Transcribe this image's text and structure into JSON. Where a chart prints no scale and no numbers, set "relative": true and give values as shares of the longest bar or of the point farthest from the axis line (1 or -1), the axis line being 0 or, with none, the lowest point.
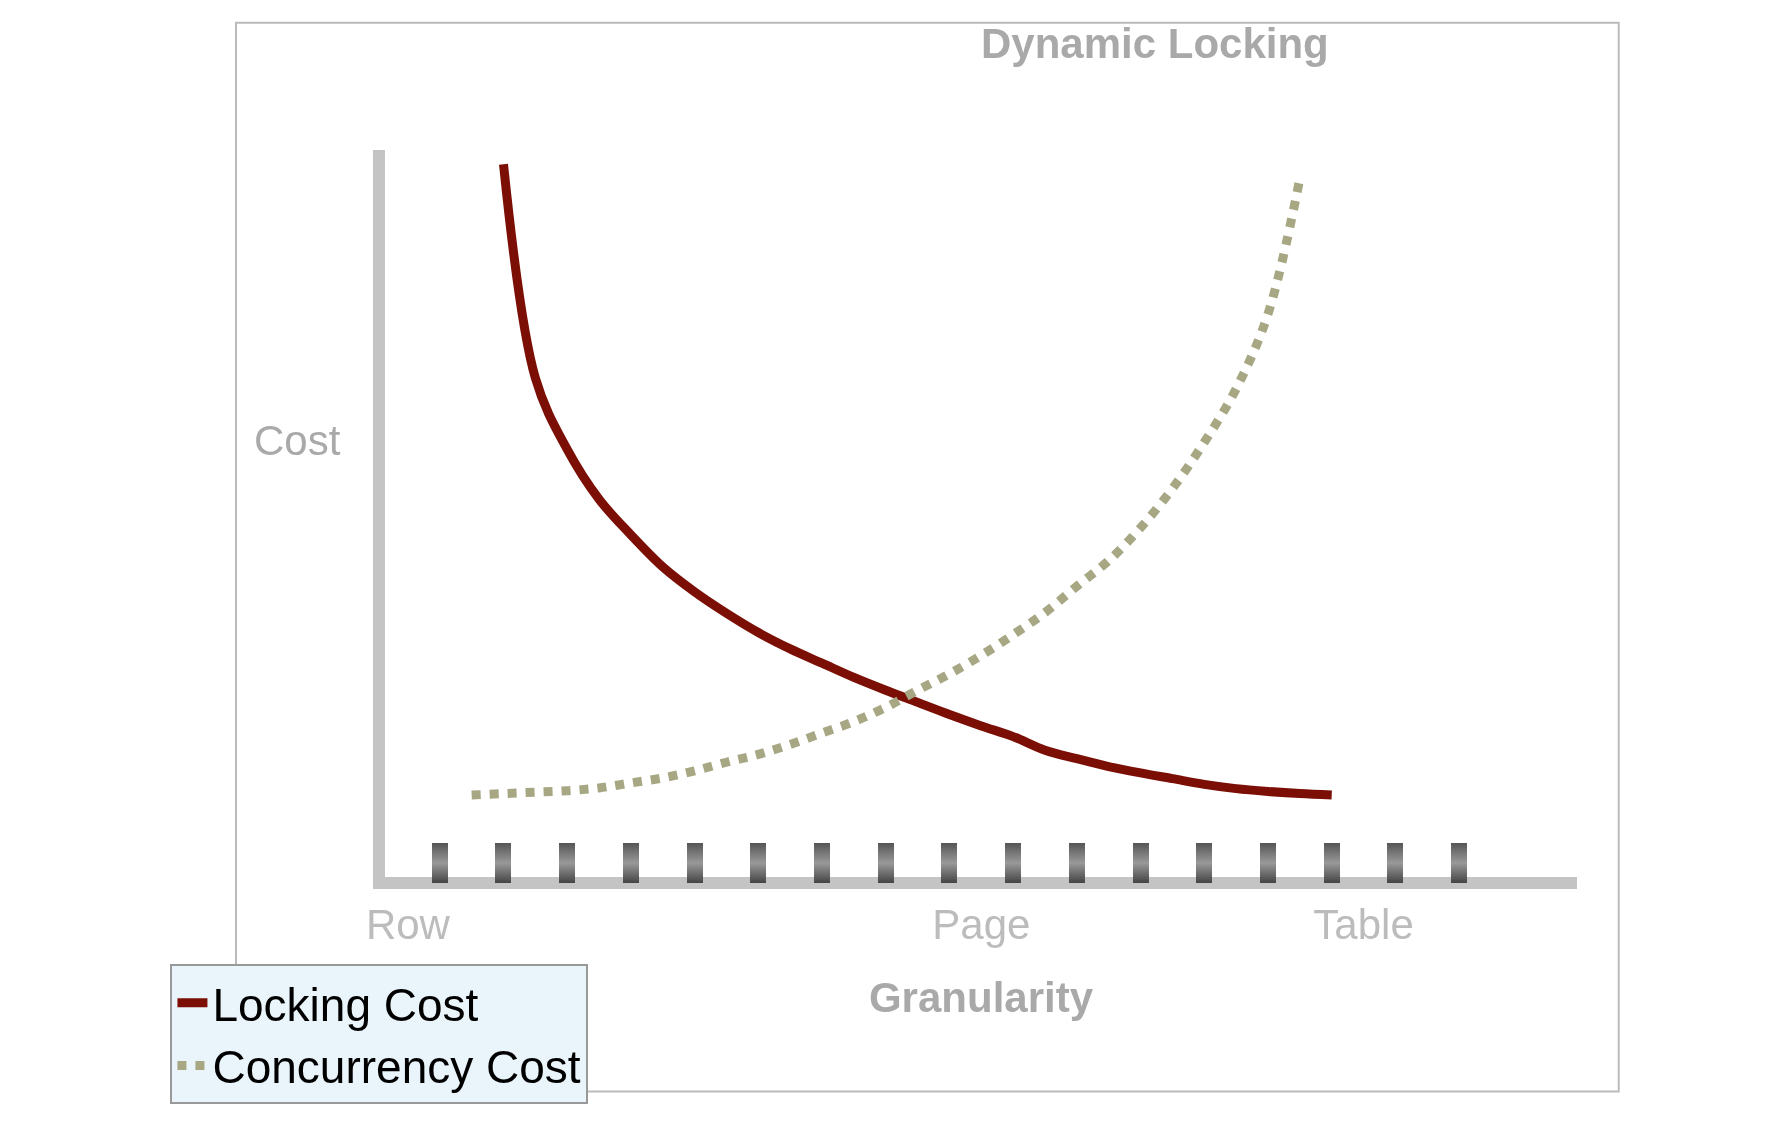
{
  "chart_data": {
    "type": "line",
    "title": "Dynamic Locking",
    "xlabel": "Granularity",
    "ylabel": "Cost",
    "relative": true,
    "categories": [
      null,
      "Row",
      null,
      null,
      null,
      null,
      null,
      null,
      null,
      null,
      null,
      null,
      null,
      null,
      null,
      null,
      null,
      null,
      null,
      "Page",
      null,
      null,
      null,
      null,
      null,
      null,
      null,
      null,
      null,
      null,
      null,
      "Table",
      null,
      null,
      null
    ],
    "series": [
      {
        "name": "Locking Cost",
        "color": "#7b0f06",
        "line_style": "solid",
        "values": [
          null,
          null,
          null,
          null,
          1,
          0.7,
          0.6,
          0.53,
          0.48,
          0.435,
          0.4,
          0.37,
          0.343,
          0.32,
          0.3,
          0.28,
          0.262,
          0.245,
          0.228,
          0.212,
          0.197,
          0.178,
          0.166,
          0.155,
          0.146,
          0.138,
          0.13,
          0.124,
          0.12,
          0.117,
          0.115,
          null,
          null,
          null,
          null
        ]
      },
      {
        "name": "Concurrency Cost",
        "color": "#a7a784",
        "line_style": "dotted",
        "values": [
          null,
          null,
          null,
          0.115,
          0.117,
          0.119,
          0.121,
          0.125,
          0.132,
          0.139,
          0.149,
          0.161,
          0.172,
          0.186,
          0.202,
          0.218,
          0.238,
          0.262,
          0.285,
          0.311,
          0.34,
          0.371,
          0.408,
          0.444,
          0.49,
          0.545,
          0.61,
          0.685,
          0.79,
          0.98,
          null,
          null,
          null,
          null,
          null
        ]
      }
    ],
    "legend": "bottom left"
  }
}
